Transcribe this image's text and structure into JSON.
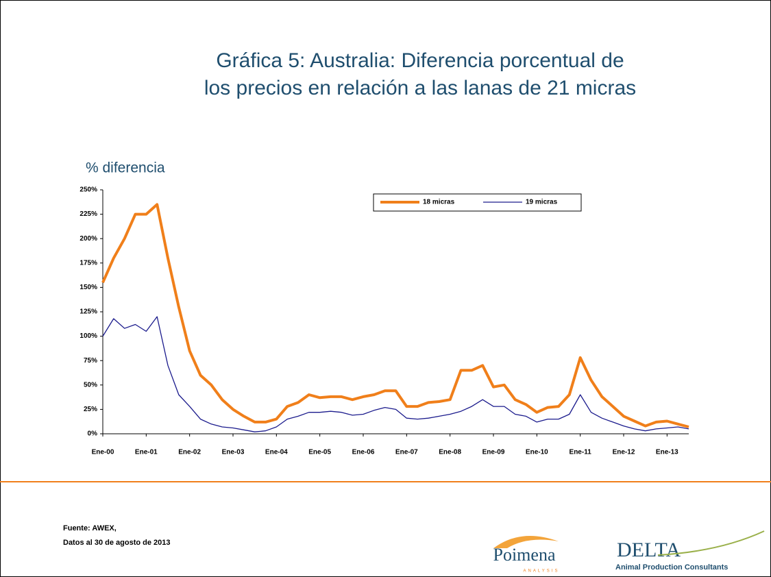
{
  "chart_data": {
    "type": "line",
    "title": "Gráfica 5:  Australia: Diferencia porcentual de los precios en relación a las lanas de 21 micras",
    "y_label": "% diferencia",
    "categories": [
      "Ene-00",
      null,
      null,
      null,
      "Ene-01",
      null,
      null,
      null,
      "Ene-02",
      null,
      null,
      null,
      "Ene-03",
      null,
      null,
      null,
      "Ene-04",
      null,
      null,
      null,
      "Ene-05",
      null,
      null,
      null,
      "Ene-06",
      null,
      null,
      null,
      "Ene-07",
      null,
      null,
      null,
      "Ene-08",
      null,
      null,
      null,
      "Ene-09",
      null,
      null,
      null,
      "Ene-10",
      null,
      null,
      null,
      "Ene-11",
      null,
      null,
      null,
      "Ene-12",
      null,
      null,
      null,
      "Ene-13",
      null,
      null
    ],
    "series": [
      {
        "name": "18 micras",
        "color": "#f07f1a",
        "values": [
          155,
          180,
          200,
          225,
          225,
          235,
          180,
          130,
          85,
          60,
          50,
          35,
          25,
          18,
          12,
          12,
          15,
          28,
          32,
          40,
          37,
          38,
          38,
          35,
          38,
          40,
          44,
          44,
          28,
          28,
          32,
          33,
          35,
          65,
          65,
          70,
          48,
          50,
          35,
          30,
          22,
          27,
          28,
          40,
          78,
          55,
          38,
          28,
          18,
          13,
          8,
          12,
          13,
          10,
          7
        ]
      },
      {
        "name": "19 micras",
        "color": "#1a1a8c",
        "values": [
          100,
          118,
          108,
          112,
          105,
          120,
          70,
          40,
          28,
          15,
          10,
          7,
          6,
          4,
          2,
          3,
          7,
          15,
          18,
          22,
          22,
          23,
          22,
          19,
          20,
          24,
          27,
          25,
          16,
          15,
          16,
          18,
          20,
          23,
          28,
          35,
          28,
          28,
          20,
          18,
          12,
          15,
          15,
          20,
          40,
          22,
          16,
          12,
          8,
          5,
          3,
          5,
          6,
          7,
          5
        ]
      }
    ],
    "ylim": [
      0,
      250
    ],
    "yticks": [
      {
        "value": 0,
        "label": "0%"
      },
      {
        "value": 25,
        "label": "25%"
      },
      {
        "value": 50,
        "label": "50%"
      },
      {
        "value": 75,
        "label": "75%"
      },
      {
        "value": 100,
        "label": "100%"
      },
      {
        "value": 125,
        "label": "125%"
      },
      {
        "value": 150,
        "label": "150%"
      },
      {
        "value": 175,
        "label": "175%"
      },
      {
        "value": 200,
        "label": "200%"
      },
      {
        "value": 225,
        "label": "225%"
      },
      {
        "value": 250,
        "label": "250%"
      }
    ],
    "legend": "top-right"
  },
  "footer": {
    "source": "Fuente: AWEX,",
    "date": "Datos al 30 de agosto de 2013",
    "logo1": "Poimena",
    "logo1_sub": "ANALYSIS",
    "logo2": "DELTA",
    "logo2_sub": "Animal Production Consultants"
  }
}
